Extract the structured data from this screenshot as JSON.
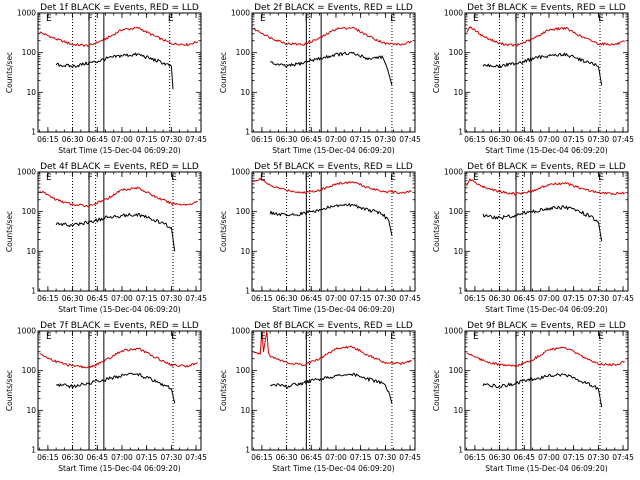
{
  "chart_data": [
    {
      "type": "line",
      "title": "Det 1f BLACK = Events, RED = LLD",
      "xlabel": "Start Time (15-Dec-04 06:09:20)",
      "ylabel": "Counts/sec",
      "yscale": "log",
      "ylim": [
        1,
        1000
      ],
      "x_ticks": [
        "06:15",
        "06:30",
        "06:45",
        "07:00",
        "07:15",
        "07:30",
        "07:45"
      ],
      "y_ticks": [
        "1",
        "10",
        "100",
        "1000"
      ],
      "markers": [
        {
          "label": "E",
          "time": "06:15"
        },
        {
          "label": "F",
          "time": "06:40"
        },
        {
          "label": "E",
          "time": "07:29"
        }
      ],
      "dotted_times": [
        "06:30",
        "06:44",
        "07:29"
      ],
      "solid_times": [
        "06:40",
        "06:49"
      ],
      "series": [
        {
          "color": "#d40000",
          "x": [
            "06:10",
            "06:14",
            "06:20",
            "06:30",
            "06:40",
            "06:50",
            "07:00",
            "07:10",
            "07:20",
            "07:30",
            "07:40",
            "07:46"
          ],
          "values": [
            330,
            280,
            220,
            160,
            150,
            220,
            380,
            420,
            260,
            170,
            160,
            190
          ]
        },
        {
          "color": "#000000",
          "x": [
            "06:20",
            "06:30",
            "06:40",
            "06:45",
            "06:50",
            "07:00",
            "07:10",
            "07:20",
            "07:25",
            "07:30",
            "07:31"
          ],
          "values": [
            50,
            45,
            55,
            60,
            70,
            85,
            90,
            65,
            55,
            45,
            12
          ]
        }
      ]
    },
    {
      "type": "line",
      "title": "Det 2f BLACK = Events, RED = LLD",
      "xlabel": "Start Time (15-Dec-04 06:09:20)",
      "ylabel": "Counts/sec",
      "yscale": "log",
      "ylim": [
        1,
        1000
      ],
      "x_ticks": [
        "06:15",
        "06:30",
        "06:45",
        "07:00",
        "07:15",
        "07:30",
        "07:45"
      ],
      "y_ticks": [
        "1",
        "10",
        "100",
        "1000"
      ],
      "markers": [
        {
          "label": "E",
          "time": "06:15"
        },
        {
          "label": "F",
          "time": "06:42"
        },
        {
          "label": "E",
          "time": "07:34"
        }
      ],
      "dotted_times": [
        "06:30",
        "06:44",
        "07:34"
      ],
      "solid_times": [
        "06:42",
        "06:51"
      ],
      "series": [
        {
          "color": "#d40000",
          "x": [
            "06:10",
            "06:14",
            "06:20",
            "06:30",
            "06:40",
            "06:50",
            "07:00",
            "07:10",
            "07:20",
            "07:30",
            "07:40",
            "07:46"
          ],
          "values": [
            400,
            330,
            240,
            170,
            160,
            230,
            400,
            430,
            260,
            170,
            160,
            190
          ]
        },
        {
          "color": "#000000",
          "x": [
            "06:20",
            "06:30",
            "06:40",
            "06:45",
            "06:50",
            "07:00",
            "07:10",
            "07:20",
            "07:28",
            "07:32",
            "07:34"
          ],
          "values": [
            55,
            45,
            55,
            65,
            70,
            90,
            95,
            70,
            80,
            30,
            15
          ]
        }
      ]
    },
    {
      "type": "line",
      "title": "Det 3f BLACK = Events, RED = LLD",
      "xlabel": "Start Time (15-Dec-04 06:09:20)",
      "ylabel": "Counts/sec",
      "yscale": "log",
      "ylim": [
        1,
        1000
      ],
      "x_ticks": [
        "06:15",
        "06:30",
        "06:45",
        "07:00",
        "07:15",
        "07:30",
        "07:45"
      ],
      "y_ticks": [
        "1",
        "10",
        "100",
        "1000"
      ],
      "markers": [
        {
          "label": "E",
          "time": "06:15"
        },
        {
          "label": "F",
          "time": "06:40"
        },
        {
          "label": "E",
          "time": "07:31"
        }
      ],
      "dotted_times": [
        "06:30",
        "06:44",
        "07:31"
      ],
      "solid_times": [
        "06:40",
        "06:49"
      ],
      "series": [
        {
          "color": "#d40000",
          "x": [
            "06:10",
            "06:12",
            "06:20",
            "06:30",
            "06:40",
            "06:50",
            "07:00",
            "07:10",
            "07:20",
            "07:30",
            "07:40",
            "07:46"
          ],
          "values": [
            320,
            450,
            260,
            170,
            150,
            220,
            380,
            420,
            250,
            170,
            160,
            190
          ]
        },
        {
          "color": "#000000",
          "x": [
            "06:20",
            "06:30",
            "06:40",
            "06:45",
            "06:50",
            "07:00",
            "07:10",
            "07:20",
            "07:25",
            "07:30",
            "07:32"
          ],
          "values": [
            50,
            45,
            55,
            60,
            70,
            85,
            90,
            65,
            55,
            45,
            15
          ]
        }
      ]
    },
    {
      "type": "line",
      "title": "Det 4f BLACK = Events, RED = LLD",
      "xlabel": "Start Time (15-Dec-04 06:09:20)",
      "ylabel": "Counts/sec",
      "yscale": "log",
      "ylim": [
        1,
        1000
      ],
      "x_ticks": [
        "06:15",
        "06:30",
        "06:45",
        "07:00",
        "07:15",
        "07:30",
        "07:45"
      ],
      "y_ticks": [
        "1",
        "10",
        "100",
        "1000"
      ],
      "markers": [
        {
          "label": "E",
          "time": "06:15"
        },
        {
          "label": "F",
          "time": "06:40"
        },
        {
          "label": "E",
          "time": "07:31"
        }
      ],
      "dotted_times": [
        "06:30",
        "06:44",
        "07:31"
      ],
      "solid_times": [
        "06:40",
        "06:49"
      ],
      "series": [
        {
          "color": "#d40000",
          "x": [
            "06:10",
            "06:14",
            "06:20",
            "06:30",
            "06:40",
            "06:50",
            "07:00",
            "07:10",
            "07:20",
            "07:30",
            "07:40",
            "07:46"
          ],
          "values": [
            330,
            280,
            200,
            150,
            140,
            200,
            360,
            400,
            240,
            160,
            150,
            180
          ]
        },
        {
          "color": "#000000",
          "x": [
            "06:20",
            "06:30",
            "06:40",
            "06:45",
            "06:50",
            "07:00",
            "07:10",
            "07:20",
            "07:25",
            "07:30",
            "07:32"
          ],
          "values": [
            50,
            45,
            55,
            60,
            70,
            80,
            85,
            60,
            50,
            40,
            10
          ]
        }
      ]
    },
    {
      "type": "line",
      "title": "Det 5f BLACK = Events, RED = LLD",
      "xlabel": "Start Time (15-Dec-04 06:09:20)",
      "ylabel": "Counts/sec",
      "yscale": "log",
      "ylim": [
        1,
        1000
      ],
      "x_ticks": [
        "06:15",
        "06:30",
        "06:45",
        "07:00",
        "07:15",
        "07:30",
        "07:45"
      ],
      "y_ticks": [
        "1",
        "10",
        "100",
        "1000"
      ],
      "markers": [
        {
          "label": "E",
          "time": "06:15"
        },
        {
          "label": "F",
          "time": "06:42"
        },
        {
          "label": "E",
          "time": "07:34"
        }
      ],
      "dotted_times": [
        "06:30",
        "06:44",
        "07:34"
      ],
      "solid_times": [
        "06:42",
        "06:51"
      ],
      "series": [
        {
          "color": "#d40000",
          "x": [
            "06:10",
            "06:14",
            "06:20",
            "06:30",
            "06:40",
            "06:50",
            "07:00",
            "07:10",
            "07:20",
            "07:30",
            "07:40",
            "07:46"
          ],
          "values": [
            550,
            700,
            450,
            350,
            300,
            350,
            500,
            560,
            400,
            320,
            300,
            330
          ]
        },
        {
          "color": "#000000",
          "x": [
            "06:20",
            "06:30",
            "06:40",
            "06:45",
            "06:50",
            "07:00",
            "07:10",
            "07:20",
            "07:28",
            "07:32",
            "07:34"
          ],
          "values": [
            95,
            80,
            90,
            100,
            110,
            140,
            150,
            110,
            90,
            60,
            25
          ]
        }
      ]
    },
    {
      "type": "line",
      "title": "Det 6f BLACK = Events, RED = LLD",
      "xlabel": "Start Time (15-Dec-04 06:09:20)",
      "ylabel": "Counts/sec",
      "yscale": "log",
      "ylim": [
        1,
        1000
      ],
      "x_ticks": [
        "06:15",
        "06:30",
        "06:45",
        "07:00",
        "07:15",
        "07:30",
        "07:45"
      ],
      "y_ticks": [
        "1",
        "10",
        "100",
        "1000"
      ],
      "markers": [
        {
          "label": "E",
          "time": "06:15"
        },
        {
          "label": "F",
          "time": "06:40"
        },
        {
          "label": "E",
          "time": "07:31"
        }
      ],
      "dotted_times": [
        "06:30",
        "06:44",
        "07:31"
      ],
      "solid_times": [
        "06:40",
        "06:49"
      ],
      "series": [
        {
          "color": "#d40000",
          "x": [
            "06:10",
            "06:12",
            "06:20",
            "06:30",
            "06:40",
            "06:50",
            "07:00",
            "07:10",
            "07:20",
            "07:30",
            "07:40",
            "07:46"
          ],
          "values": [
            450,
            650,
            420,
            320,
            280,
            330,
            480,
            520,
            380,
            300,
            280,
            300
          ]
        },
        {
          "color": "#000000",
          "x": [
            "06:20",
            "06:30",
            "06:40",
            "06:45",
            "06:50",
            "07:00",
            "07:10",
            "07:20",
            "07:25",
            "07:30",
            "07:32"
          ],
          "values": [
            80,
            70,
            80,
            95,
            100,
            120,
            130,
            95,
            75,
            55,
            18
          ]
        }
      ]
    },
    {
      "type": "line",
      "title": "Det 7f BLACK = Events, RED = LLD",
      "xlabel": "Start Time (15-Dec-04 06:09:20)",
      "ylabel": "Counts/sec",
      "yscale": "log",
      "ylim": [
        1,
        1000
      ],
      "x_ticks": [
        "06:15",
        "06:30",
        "06:45",
        "07:00",
        "07:15",
        "07:30",
        "07:45"
      ],
      "y_ticks": [
        "1",
        "10",
        "100",
        "1000"
      ],
      "markers": [
        {
          "label": "E",
          "time": "06:15"
        },
        {
          "label": "F",
          "time": "06:40"
        },
        {
          "label": "E",
          "time": "07:31"
        }
      ],
      "dotted_times": [
        "06:30",
        "06:44",
        "07:31"
      ],
      "solid_times": [
        "06:40",
        "06:49"
      ],
      "series": [
        {
          "color": "#d40000",
          "x": [
            "06:10",
            "06:14",
            "06:20",
            "06:30",
            "06:40",
            "06:50",
            "07:00",
            "07:10",
            "07:20",
            "07:30",
            "07:40",
            "07:46"
          ],
          "values": [
            260,
            220,
            170,
            130,
            120,
            180,
            320,
            360,
            220,
            140,
            130,
            160
          ]
        },
        {
          "color": "#000000",
          "x": [
            "06:20",
            "06:30",
            "06:40",
            "06:45",
            "06:50",
            "07:00",
            "07:10",
            "07:20",
            "07:25",
            "07:30",
            "07:32"
          ],
          "values": [
            45,
            40,
            48,
            55,
            60,
            75,
            80,
            55,
            45,
            35,
            15
          ]
        }
      ]
    },
    {
      "type": "line",
      "title": "Det 8f BLACK = Events, RED = LLD",
      "xlabel": "Start Time (15-Dec-04 06:09:20)",
      "ylabel": "Counts/sec",
      "yscale": "log",
      "ylim": [
        1,
        1000
      ],
      "x_ticks": [
        "06:15",
        "06:30",
        "06:45",
        "07:00",
        "07:15",
        "07:30",
        "07:45"
      ],
      "y_ticks": [
        "1",
        "10",
        "100",
        "1000"
      ],
      "markers": [
        {
          "label": "E",
          "time": "06:15"
        },
        {
          "label": "F",
          "time": "06:42"
        },
        {
          "label": "E",
          "time": "07:34"
        }
      ],
      "dotted_times": [
        "06:30",
        "06:44",
        "07:34"
      ],
      "solid_times": [
        "06:42",
        "06:51"
      ],
      "series": [
        {
          "color": "#d40000",
          "x": [
            "06:10",
            "06:14",
            "06:15",
            "06:16",
            "06:18",
            "06:19",
            "06:20",
            "06:30",
            "06:40",
            "06:50",
            "07:00",
            "07:10",
            "07:20",
            "07:30",
            "07:40",
            "07:46"
          ],
          "values": [
            300,
            260,
            1000,
            300,
            1000,
            280,
            240,
            160,
            140,
            200,
            360,
            400,
            240,
            160,
            150,
            180
          ]
        },
        {
          "color": "#000000",
          "x": [
            "06:20",
            "06:30",
            "06:40",
            "06:45",
            "06:50",
            "07:00",
            "07:10",
            "07:20",
            "07:28",
            "07:32",
            "07:34"
          ],
          "values": [
            45,
            40,
            48,
            55,
            60,
            75,
            80,
            60,
            50,
            30,
            15
          ]
        }
      ]
    },
    {
      "type": "line",
      "title": "Det 9f BLACK = Events, RED = LLD",
      "xlabel": "Start Time (15-Dec-04 06:09:20)",
      "ylabel": "Counts/sec",
      "yscale": "log",
      "ylim": [
        1,
        1000
      ],
      "x_ticks": [
        "06:15",
        "06:30",
        "06:45",
        "07:00",
        "07:15",
        "07:30",
        "07:45"
      ],
      "y_ticks": [
        "1",
        "10",
        "100",
        "1000"
      ],
      "markers": [
        {
          "label": "E",
          "time": "06:15"
        },
        {
          "label": "F",
          "time": "06:40"
        },
        {
          "label": "E",
          "time": "07:31"
        }
      ],
      "dotted_times": [
        "06:30",
        "06:44",
        "07:31"
      ],
      "solid_times": [
        "06:40",
        "06:49"
      ],
      "series": [
        {
          "color": "#d40000",
          "x": [
            "06:10",
            "06:14",
            "06:20",
            "06:30",
            "06:40",
            "06:50",
            "07:00",
            "07:10",
            "07:20",
            "07:30",
            "07:40",
            "07:46"
          ],
          "values": [
            280,
            240,
            180,
            140,
            130,
            190,
            340,
            380,
            230,
            150,
            140,
            170
          ]
        },
        {
          "color": "#000000",
          "x": [
            "06:20",
            "06:30",
            "06:40",
            "06:45",
            "06:50",
            "07:00",
            "07:10",
            "07:20",
            "07:25",
            "07:30",
            "07:32"
          ],
          "values": [
            45,
            40,
            48,
            55,
            60,
            75,
            80,
            55,
            45,
            35,
            12
          ]
        }
      ]
    }
  ]
}
